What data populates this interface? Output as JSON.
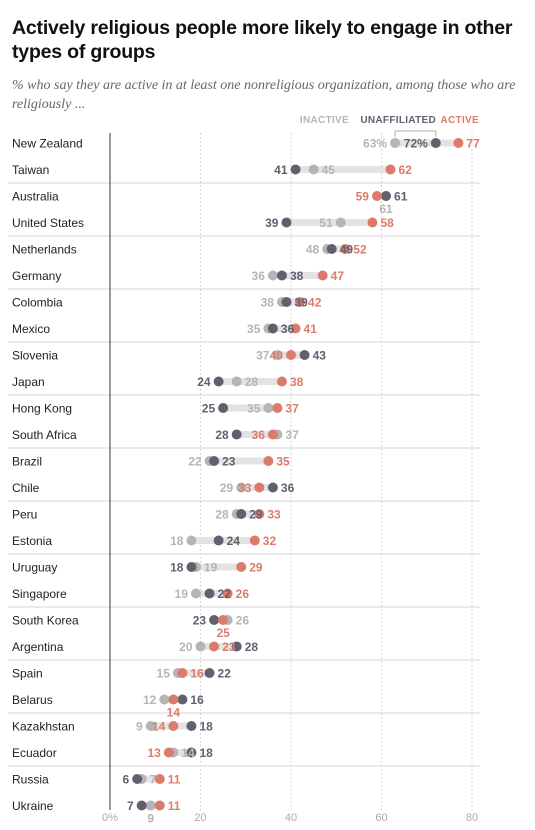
{
  "title": "Actively religious people more likely to engage in other types of groups",
  "subtitle": "% who say they are active in at least one nonreligious organization, among those who are religiously ...",
  "colors": {
    "inactive": "#b5b5b5",
    "unaffiliated": "#62606f",
    "active": "#dc7b6c",
    "connector": "#e3e3e3",
    "grid": "#c9c9c9"
  },
  "chart_data": {
    "type": "dot",
    "legend": [
      "INACTIVE",
      "UNAFFILIATED",
      "ACTIVE"
    ],
    "series": [
      {
        "name": "INACTIVE",
        "color": "#b5b5b5"
      },
      {
        "name": "UNAFFILIATED",
        "color": "#62606f"
      },
      {
        "name": "ACTIVE",
        "color": "#dc7b6c"
      }
    ],
    "xlim": [
      0,
      80
    ],
    "xticks": [
      "0%",
      "20",
      "40",
      "60",
      "80"
    ],
    "grid": true,
    "rows": [
      {
        "country": "New Zealand",
        "inactive": 63,
        "unaffiliated": 72,
        "active": 77
      },
      {
        "country": "Taiwan",
        "inactive": 45,
        "unaffiliated": 41,
        "active": 62
      },
      {
        "country": "Australia",
        "inactive": 61,
        "unaffiliated": 61,
        "active": 59
      },
      {
        "country": "United States",
        "inactive": 51,
        "unaffiliated": 39,
        "active": 58
      },
      {
        "country": "Netherlands",
        "inactive": 48,
        "unaffiliated": 49,
        "active": 52
      },
      {
        "country": "Germany",
        "inactive": 36,
        "unaffiliated": 38,
        "active": 47
      },
      {
        "country": "Colombia",
        "inactive": 38,
        "unaffiliated": 39,
        "active": 42
      },
      {
        "country": "Mexico",
        "inactive": 35,
        "unaffiliated": 36,
        "active": 41
      },
      {
        "country": "Slovenia",
        "inactive": 37,
        "unaffiliated": 43,
        "active": 40
      },
      {
        "country": "Japan",
        "inactive": 28,
        "unaffiliated": 24,
        "active": 38
      },
      {
        "country": "Hong Kong",
        "inactive": 35,
        "unaffiliated": 25,
        "active": 37
      },
      {
        "country": "South Africa",
        "inactive": 37,
        "unaffiliated": 28,
        "active": 36
      },
      {
        "country": "Brazil",
        "inactive": 22,
        "unaffiliated": 23,
        "active": 35
      },
      {
        "country": "Chile",
        "inactive": 29,
        "unaffiliated": 36,
        "active": 33
      },
      {
        "country": "Peru",
        "inactive": 28,
        "unaffiliated": 29,
        "active": 33
      },
      {
        "country": "Estonia",
        "inactive": 18,
        "unaffiliated": 24,
        "active": 32
      },
      {
        "country": "Uruguay",
        "inactive": 19,
        "unaffiliated": 18,
        "active": 29
      },
      {
        "country": "Singapore",
        "inactive": 19,
        "unaffiliated": 22,
        "active": 26
      },
      {
        "country": "South Korea",
        "inactive": 26,
        "unaffiliated": 23,
        "active": 25
      },
      {
        "country": "Argentina",
        "inactive": 20,
        "unaffiliated": 28,
        "active": 23
      },
      {
        "country": "Spain",
        "inactive": 15,
        "unaffiliated": 22,
        "active": 16
      },
      {
        "country": "Belarus",
        "inactive": 12,
        "unaffiliated": 16,
        "active": 14
      },
      {
        "country": "Kazakhstan",
        "inactive": 9,
        "unaffiliated": 18,
        "active": 14
      },
      {
        "country": "Ecuador",
        "inactive": 14,
        "unaffiliated": 18,
        "active": 13
      },
      {
        "country": "Russia",
        "inactive": 7,
        "unaffiliated": 6,
        "active": 11
      },
      {
        "country": "Ukraine",
        "inactive": 9,
        "unaffiliated": 7,
        "active": 11
      }
    ]
  }
}
